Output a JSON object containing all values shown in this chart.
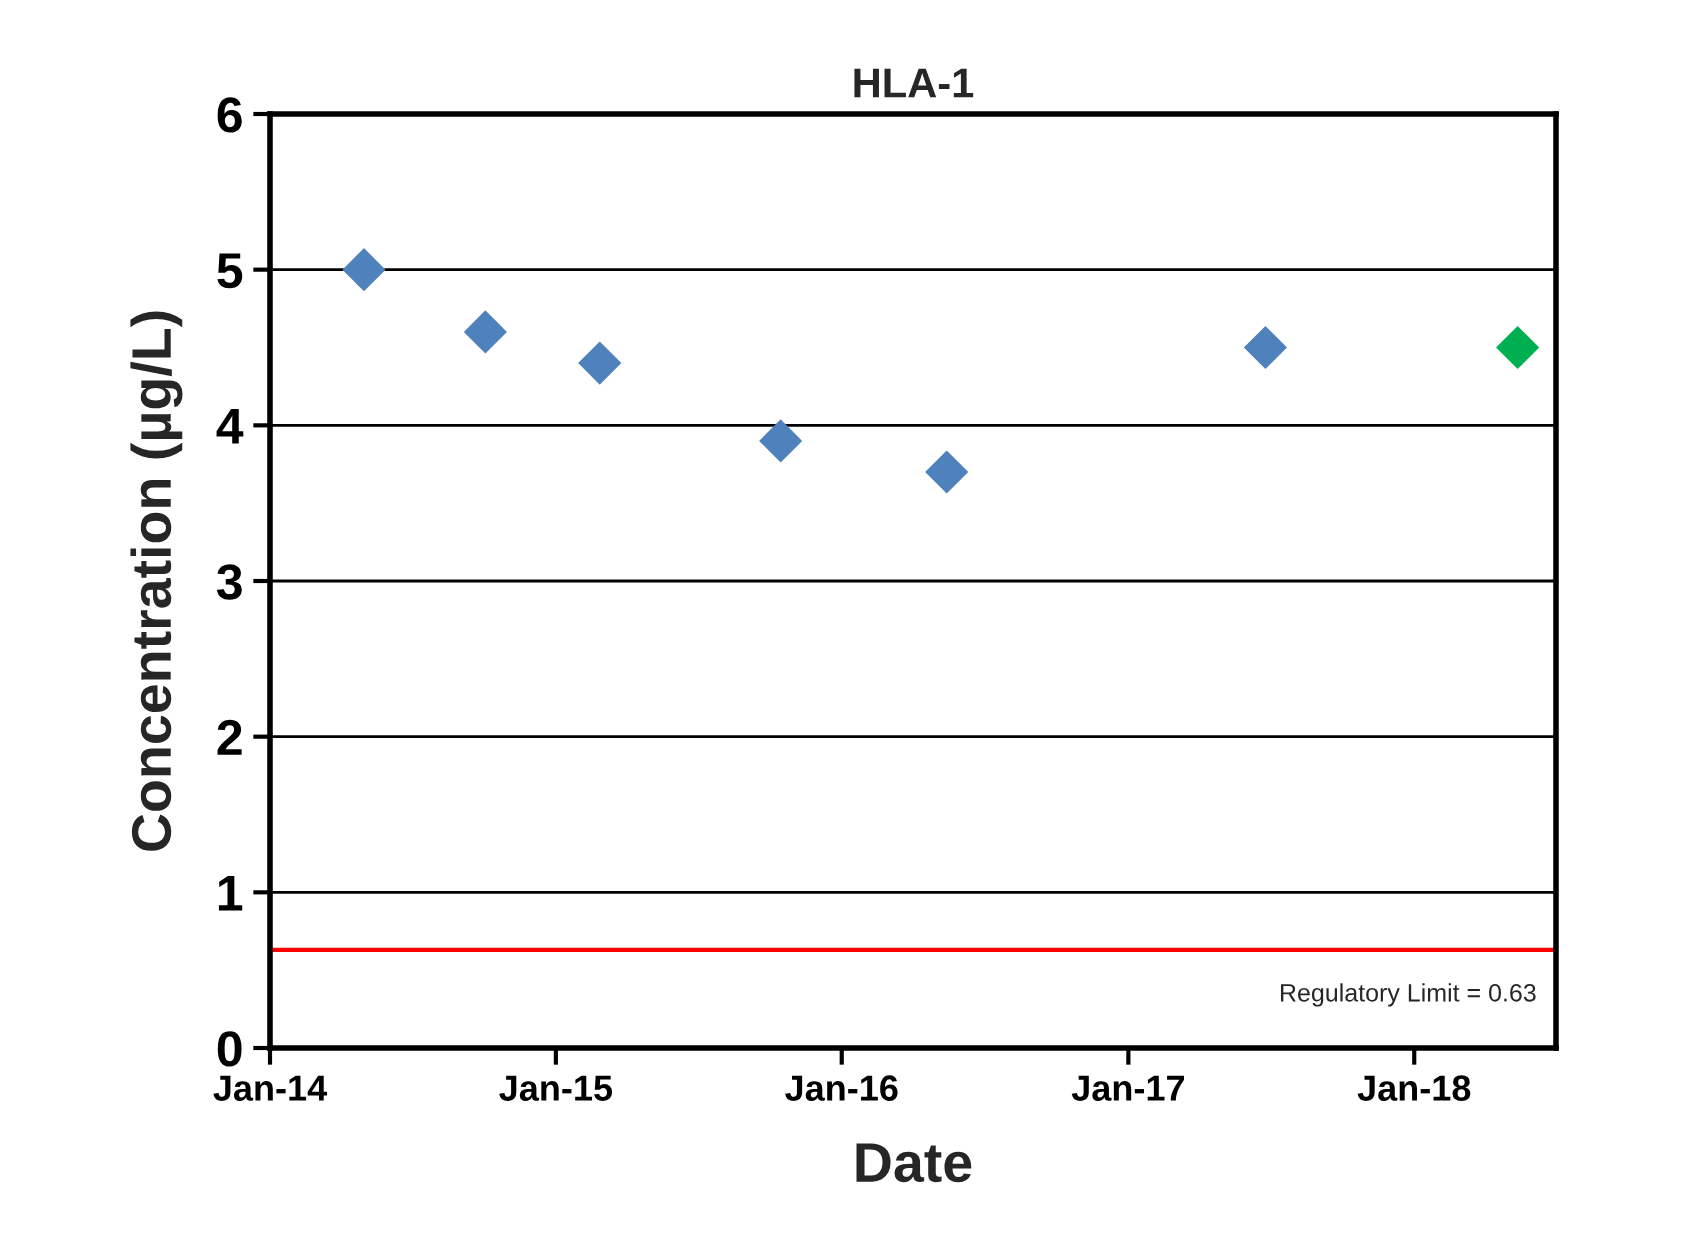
{
  "chart_data": {
    "type": "scatter",
    "title": "HLA-1",
    "xlabel": "Date",
    "ylabel": "Concentration (µg/L)",
    "series": [
      {
        "color": "#4f81bd",
        "x": [
          "2014-05-01",
          "2014-10-03",
          "2015-02-26",
          "2015-10-15",
          "2016-05-14",
          "2017-06-25"
        ],
        "values": [
          5.0,
          4.6,
          4.4,
          3.9,
          3.7,
          4.5
        ]
      },
      {
        "color": "#00b050",
        "x": [
          "2018-05-13"
        ],
        "values": [
          4.5
        ]
      }
    ],
    "marker": "diamond",
    "grid": "y",
    "legend": false,
    "xlim": [
      "2014-01-01",
      "2018-07-01"
    ],
    "xticks": [
      {
        "value": "2014-01-01",
        "label": "Jan-14"
      },
      {
        "value": "2015-01-01",
        "label": "Jan-15"
      },
      {
        "value": "2016-01-01",
        "label": "Jan-16"
      },
      {
        "value": "2017-01-01",
        "label": "Jan-17"
      },
      {
        "value": "2018-01-01",
        "label": "Jan-18"
      }
    ],
    "ylim": [
      0,
      6
    ],
    "yticks": [
      0,
      1,
      2,
      3,
      4,
      5,
      6
    ],
    "ref_lines": [
      {
        "axis": "y",
        "value": 0.63,
        "label": "Regulatory Limit = 0.63",
        "color": "#ff0000"
      }
    ]
  }
}
